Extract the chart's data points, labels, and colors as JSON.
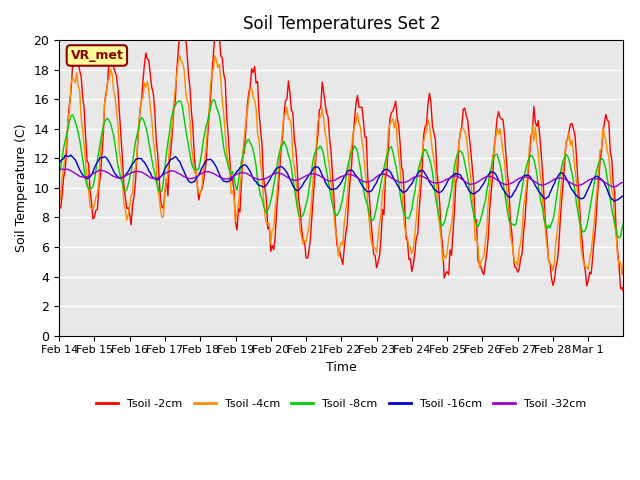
{
  "title": "Soil Temperatures Set 2",
  "xlabel": "Time",
  "ylabel": "Soil Temperature (C)",
  "ylim": [
    0,
    20
  ],
  "yticks": [
    0,
    2,
    4,
    6,
    8,
    10,
    12,
    14,
    16,
    18,
    20
  ],
  "annotation_text": "VR_met",
  "annotation_color": "#8B0000",
  "annotation_bg": "#FFFF99",
  "bg_color": "#E8E8E8",
  "series_colors": [
    "#FF0000",
    "#FF8C00",
    "#00CC00",
    "#0000CC",
    "#9900CC"
  ],
  "series_labels": [
    "Tsoil -2cm",
    "Tsoil -4cm",
    "Tsoil -8cm",
    "Tsoil -16cm",
    "Tsoil -32cm"
  ],
  "x_tick_labels": [
    "Feb 14",
    "Feb 15",
    "Feb 16",
    "Feb 17",
    "Feb 18",
    "Feb 19",
    "Feb 20",
    "Feb 21",
    "Feb 22",
    "Feb 23",
    "Feb 24",
    "Feb 25",
    "Feb 26",
    "Feb 27",
    "Feb 28",
    "Mar 1"
  ]
}
